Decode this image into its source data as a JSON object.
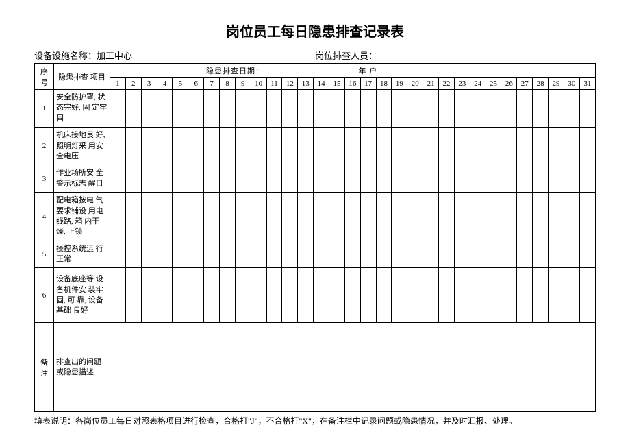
{
  "title": "岗位员工每日隐患排查记录表",
  "meta": {
    "facility_label": "设备设施名称：",
    "facility_value": "加工中心",
    "inspector_label": "岗位排查人员："
  },
  "header": {
    "seq": "序号",
    "item": "隐患排查 项目",
    "date_line": "隐患排查日期：　　　　　　　　　　　　年 户"
  },
  "days": [
    "1",
    "2",
    "3",
    "4",
    "5",
    "6",
    "7",
    "8",
    "9",
    "10",
    "11",
    "12",
    "13",
    "14",
    "15",
    "16",
    "17",
    "18",
    "19",
    "20",
    "21",
    "22",
    "23",
    "24",
    "25",
    "26",
    "27",
    "28",
    "29",
    "30",
    "31"
  ],
  "rows": [
    {
      "seq": "1",
      "item": "安全防护罩, 状态完好, 固 定牢固",
      "hclass": "row-h1"
    },
    {
      "seq": "2",
      "item": "机床接地良 好, 照明灯采  用安全电压",
      "hclass": "row-h2"
    },
    {
      "seq": "3",
      "item": "作业场所安  全警示标志 醒目",
      "hclass": "row-h3"
    },
    {
      "seq": "4",
      "item": "配电箱按电 气要求铺设  用电线路, 箱  内干燥, 上锁",
      "hclass": "row-h4"
    },
    {
      "seq": "5",
      "item": "操控系统运 行正常",
      "hclass": "row-h5"
    },
    {
      "seq": "6",
      "item": "设备底座等 设备机件安  装牢固, 可  靠, 设备基础 良好",
      "hclass": "row-h6"
    }
  ],
  "remarks": {
    "label": "备注",
    "desc": "排查出的问题或隐患描述"
  },
  "footnote": "填表说明：各岗位员工每日对照表格项目进行检查，合格打\"J\"，不合格打\"X\"，在备注栏中记录问题或隐患情况，并及时汇报、处理。"
}
